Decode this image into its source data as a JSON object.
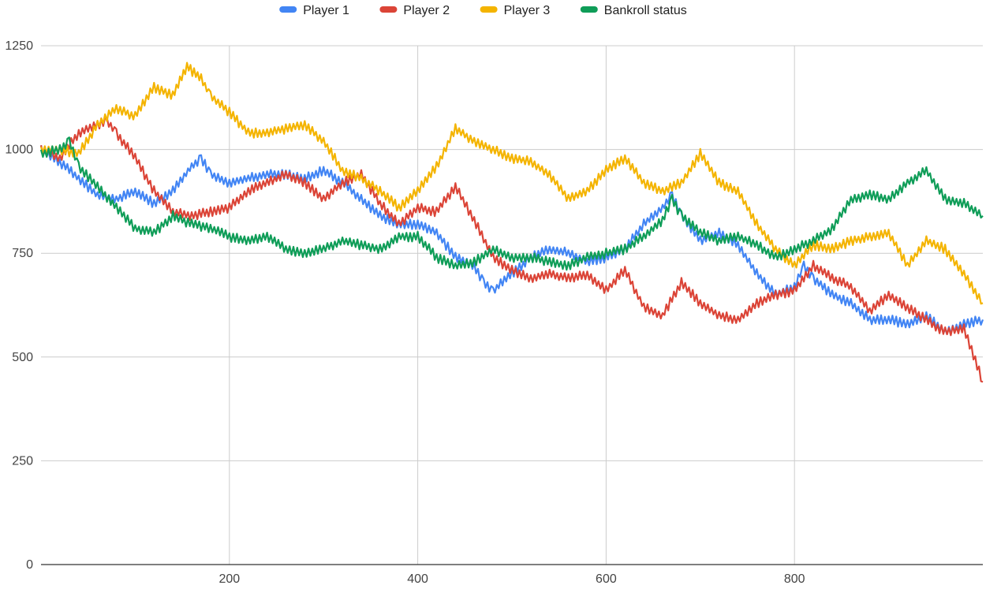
{
  "chart_data": {
    "type": "line",
    "title": "",
    "xlabel": "",
    "ylabel": "",
    "xlim": [
      0,
      1000
    ],
    "ylim": [
      0,
      1250
    ],
    "x_ticks": [
      {
        "value": 200,
        "label": "200"
      },
      {
        "value": 400,
        "label": "400"
      },
      {
        "value": 600,
        "label": "600"
      },
      {
        "value": 800,
        "label": "800"
      }
    ],
    "y_ticks": [
      {
        "value": 0,
        "label": "0"
      },
      {
        "value": 250,
        "label": "250"
      },
      {
        "value": 500,
        "label": "500"
      },
      {
        "value": 750,
        "label": "750"
      },
      {
        "value": 1000,
        "label": "1000"
      },
      {
        "value": 1250,
        "label": "1250"
      }
    ],
    "grid": true,
    "legend_position": "top-center",
    "series": [
      {
        "name": "Player 1",
        "color": "#4285F4",
        "x": [
          0,
          20,
          40,
          60,
          80,
          100,
          120,
          140,
          160,
          170,
          180,
          200,
          220,
          240,
          260,
          280,
          300,
          320,
          340,
          360,
          380,
          400,
          420,
          440,
          460,
          470,
          480,
          500,
          520,
          540,
          560,
          580,
          600,
          620,
          640,
          660,
          670,
          680,
          700,
          720,
          740,
          760,
          780,
          800,
          810,
          820,
          840,
          860,
          880,
          900,
          920,
          940,
          960,
          980,
          1000
        ],
        "values": [
          1000,
          970,
          930,
          890,
          880,
          900,
          870,
          900,
          960,
          980,
          940,
          920,
          930,
          940,
          940,
          930,
          950,
          920,
          880,
          840,
          820,
          820,
          800,
          740,
          720,
          680,
          660,
          700,
          740,
          760,
          750,
          730,
          740,
          760,
          820,
          860,
          890,
          840,
          780,
          800,
          770,
          700,
          650,
          670,
          720,
          690,
          650,
          630,
          590,
          590,
          580,
          600,
          560,
          580,
          590
        ]
      },
      {
        "name": "Player 2",
        "color": "#DB4437",
        "x": [
          0,
          20,
          40,
          60,
          70,
          80,
          100,
          120,
          140,
          160,
          180,
          200,
          220,
          240,
          260,
          280,
          300,
          320,
          340,
          360,
          380,
          400,
          420,
          440,
          460,
          480,
          500,
          520,
          540,
          560,
          580,
          600,
          620,
          640,
          660,
          680,
          700,
          720,
          740,
          760,
          780,
          800,
          820,
          840,
          860,
          880,
          900,
          920,
          940,
          960,
          980,
          1000
        ],
        "values": [
          1000,
          980,
          1040,
          1060,
          1070,
          1040,
          980,
          900,
          850,
          840,
          850,
          860,
          900,
          920,
          940,
          920,
          880,
          920,
          940,
          870,
          820,
          860,
          850,
          910,
          830,
          740,
          710,
          690,
          700,
          690,
          700,
          660,
          710,
          620,
          600,
          680,
          630,
          600,
          590,
          630,
          650,
          660,
          720,
          690,
          670,
          610,
          650,
          620,
          590,
          560,
          570,
          440
        ]
      },
      {
        "name": "Player 3",
        "color": "#F4B400",
        "x": [
          0,
          20,
          40,
          60,
          80,
          100,
          120,
          140,
          155,
          170,
          180,
          200,
          220,
          240,
          260,
          280,
          300,
          320,
          340,
          360,
          380,
          400,
          420,
          440,
          460,
          480,
          500,
          520,
          540,
          560,
          580,
          600,
          620,
          640,
          660,
          680,
          700,
          720,
          740,
          760,
          780,
          800,
          820,
          840,
          860,
          880,
          900,
          920,
          940,
          960,
          980,
          1000
        ],
        "values": [
          1000,
          1000,
          990,
          1060,
          1100,
          1080,
          1150,
          1130,
          1200,
          1170,
          1130,
          1090,
          1040,
          1040,
          1050,
          1060,
          1020,
          950,
          930,
          900,
          860,
          900,
          960,
          1050,
          1020,
          1000,
          980,
          970,
          940,
          880,
          900,
          950,
          980,
          920,
          900,
          920,
          990,
          920,
          900,
          820,
          760,
          720,
          770,
          760,
          780,
          790,
          800,
          720,
          780,
          760,
          700,
          630
        ]
      },
      {
        "name": "Bankroll status",
        "color": "#0F9D58",
        "x": [
          0,
          20,
          30,
          40,
          60,
          80,
          100,
          120,
          140,
          160,
          180,
          200,
          220,
          240,
          260,
          280,
          300,
          320,
          340,
          360,
          380,
          400,
          420,
          440,
          460,
          480,
          500,
          520,
          540,
          560,
          580,
          600,
          620,
          640,
          660,
          670,
          680,
          700,
          720,
          740,
          760,
          780,
          800,
          820,
          840,
          860,
          880,
          900,
          920,
          940,
          960,
          980,
          1000
        ],
        "values": [
          990,
          1000,
          1020,
          960,
          910,
          860,
          810,
          800,
          840,
          820,
          810,
          790,
          780,
          790,
          760,
          750,
          760,
          780,
          770,
          760,
          790,
          790,
          740,
          720,
          730,
          760,
          740,
          740,
          730,
          720,
          740,
          750,
          760,
          790,
          830,
          880,
          840,
          800,
          780,
          790,
          770,
          740,
          760,
          780,
          810,
          880,
          890,
          880,
          920,
          950,
          880,
          870,
          840
        ]
      }
    ]
  }
}
